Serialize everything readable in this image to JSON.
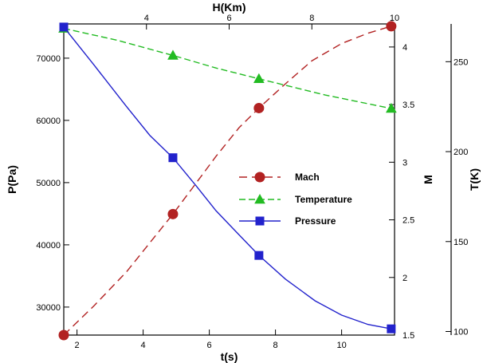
{
  "chart_data": {
    "type": "line",
    "title": "",
    "x_bottom": {
      "label": "t(s)",
      "range": [
        1.6,
        11.6
      ],
      "ticks": [
        2,
        4,
        6,
        8,
        10
      ]
    },
    "x_top": {
      "label": "H(Km)",
      "range": [
        2.0,
        10.0
      ],
      "ticks": [
        4,
        6,
        8,
        10
      ]
    },
    "y_left": {
      "label": "P(Pa)",
      "range": [
        25500,
        75500
      ],
      "ticks": [
        30000,
        40000,
        50000,
        60000,
        70000
      ]
    },
    "y_mach": {
      "label": "M",
      "range": [
        1.5,
        4.2
      ],
      "ticks": [
        1.5,
        2,
        2.5,
        3,
        3.5,
        4
      ]
    },
    "y_temp": {
      "label": "T(K)",
      "range": [
        98,
        271
      ],
      "ticks": [
        100,
        150,
        200,
        250
      ]
    },
    "grid": false,
    "legend_position": "center-right",
    "series": [
      {
        "name": "Mach",
        "axis": "y_mach",
        "color": "#b22222",
        "line_style": "long-dash",
        "marker": "circle",
        "x": [
          1.6,
          4.9,
          7.5,
          11.5
        ],
        "y": [
          1.5,
          2.55,
          3.47,
          4.18
        ],
        "curve_x": [
          1.6,
          2.5,
          3.5,
          4.2,
          4.9,
          5.5,
          6.2,
          6.9,
          7.5,
          8.3,
          9.1,
          10.0,
          10.8,
          11.5
        ],
        "curve_y": [
          1.5,
          1.75,
          2.05,
          2.3,
          2.55,
          2.78,
          3.05,
          3.3,
          3.47,
          3.68,
          3.88,
          4.03,
          4.12,
          4.18
        ]
      },
      {
        "name": "Temperature",
        "axis": "y_temp",
        "color": "#22bb22",
        "line_style": "dash",
        "marker": "triangle",
        "x": [
          1.6,
          4.9,
          7.5,
          11.5
        ],
        "y": [
          268.5,
          253.5,
          240.5,
          224.0
        ],
        "curve_x": [
          1.6,
          3.2,
          4.9,
          6.2,
          7.5,
          9.5,
          11.5
        ],
        "curve_y": [
          268.5,
          262.0,
          253.5,
          246.5,
          240.5,
          231.5,
          224.0
        ]
      },
      {
        "name": "Pressure",
        "axis": "y_left",
        "color": "#2222cc",
        "line_style": "solid",
        "marker": "square",
        "x": [
          1.6,
          4.9,
          7.5,
          11.5
        ],
        "y": [
          75000,
          54000,
          38300,
          26500
        ],
        "curve_x": [
          1.6,
          2.5,
          3.5,
          4.2,
          4.9,
          5.6,
          6.2,
          6.9,
          7.5,
          8.3,
          9.2,
          10.0,
          10.8,
          11.5
        ],
        "curve_y": [
          75000,
          69000,
          62200,
          57600,
          54000,
          49500,
          45500,
          41600,
          38300,
          34500,
          31000,
          28700,
          27200,
          26500
        ]
      }
    ]
  }
}
